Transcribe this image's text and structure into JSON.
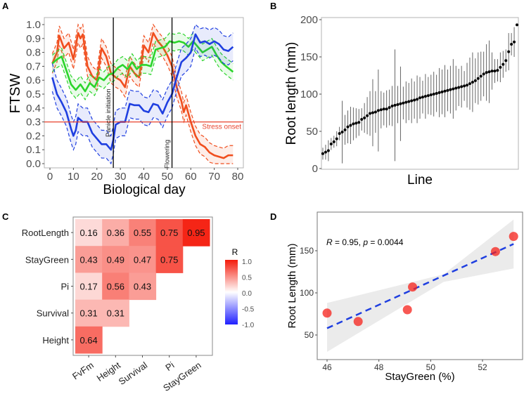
{
  "chart_data": [
    {
      "panel": "A",
      "type": "line",
      "xlabel": "Biological day",
      "ylabel": "FTSW",
      "xlim": [
        0,
        80
      ],
      "ylim": [
        0,
        1
      ],
      "xticks": [
        0,
        10,
        20,
        30,
        40,
        50,
        60,
        70,
        80
      ],
      "yticks": [
        "0.0",
        "0.1",
        "0.2",
        "0.3",
        "0.4",
        "0.5",
        "0.6",
        "0.7",
        "0.8",
        "0.9",
        "1.0"
      ],
      "grid": false,
      "series": [
        {
          "color": "#F04E1E",
          "band_halfwidth": 0.07,
          "x": [
            1,
            3,
            4,
            6,
            8,
            10,
            12,
            13,
            14,
            16,
            18,
            20,
            22,
            24,
            26,
            28,
            30,
            32,
            34,
            36,
            38,
            40,
            42,
            44,
            46,
            48,
            50,
            52,
            54,
            56,
            57,
            58,
            60,
            62,
            64,
            66,
            68,
            70,
            72,
            74,
            76,
            78
          ],
          "y": [
            0.72,
            0.8,
            0.92,
            0.83,
            0.87,
            0.75,
            0.94,
            0.9,
            0.93,
            0.7,
            0.63,
            0.6,
            0.83,
            0.77,
            0.65,
            0.62,
            0.6,
            0.55,
            0.7,
            0.65,
            0.62,
            0.85,
            0.8,
            0.94,
            0.88,
            0.84,
            0.78,
            0.7,
            0.55,
            0.45,
            0.37,
            0.42,
            0.3,
            0.2,
            0.14,
            0.12,
            0.08,
            0.06,
            0.05,
            0.04,
            0.06,
            0.06
          ]
        },
        {
          "color": "#2BD42B",
          "band_halfwidth": 0.06,
          "x": [
            1,
            3,
            5,
            7,
            9,
            11,
            13,
            15,
            17,
            19,
            21,
            23,
            25,
            27,
            29,
            31,
            33,
            35,
            37,
            39,
            41,
            43,
            45,
            47,
            49,
            51,
            53,
            55,
            57,
            59,
            61,
            63,
            65,
            67,
            69,
            71,
            73,
            75,
            78
          ],
          "y": [
            0.72,
            0.75,
            0.77,
            0.67,
            0.57,
            0.53,
            0.57,
            0.52,
            0.58,
            0.55,
            0.62,
            0.6,
            0.64,
            0.65,
            0.69,
            0.71,
            0.68,
            0.73,
            0.68,
            0.71,
            0.71,
            0.7,
            0.82,
            0.83,
            0.84,
            0.88,
            0.87,
            0.88,
            0.87,
            0.84,
            0.88,
            0.84,
            0.8,
            0.82,
            0.84,
            0.78,
            0.73,
            0.7,
            0.66
          ]
        },
        {
          "color": "#1F3FE0",
          "band_halfwidth": 0.1,
          "x": [
            1,
            3,
            5,
            7,
            9,
            10,
            11,
            12,
            14,
            16,
            18,
            20,
            22,
            24,
            26,
            27,
            28,
            30,
            32,
            34,
            36,
            38,
            40,
            42,
            44,
            46,
            48,
            50,
            52,
            54,
            56,
            58,
            60,
            62,
            64,
            66,
            68,
            70,
            72,
            74,
            76,
            78
          ],
          "y": [
            0.62,
            0.5,
            0.44,
            0.37,
            0.25,
            0.2,
            0.24,
            0.33,
            0.3,
            0.3,
            0.22,
            0.18,
            0.14,
            0.14,
            0.1,
            0.17,
            0.28,
            0.3,
            0.3,
            0.43,
            0.42,
            0.42,
            0.38,
            0.37,
            0.43,
            0.42,
            0.36,
            0.44,
            0.5,
            0.62,
            0.73,
            0.76,
            0.8,
            0.93,
            0.87,
            0.88,
            0.86,
            0.88,
            0.86,
            0.82,
            0.81,
            0.84
          ]
        }
      ],
      "hline": {
        "y": 0.3,
        "label": "Stress onset",
        "color": "#E8432E"
      },
      "vlines": [
        {
          "x": 27,
          "label": "Panicle initiation"
        },
        {
          "x": 52,
          "label": "Flowering"
        }
      ]
    },
    {
      "panel": "B",
      "type": "scatter",
      "xlabel": "Line",
      "ylabel": "Root length (mm)",
      "ylim": [
        0,
        200
      ],
      "yticks": [
        0,
        50,
        100,
        150,
        200
      ],
      "grid": false,
      "values": [
        20,
        22,
        24,
        33,
        36,
        40,
        47,
        49,
        52,
        56,
        58,
        60,
        61,
        62,
        66,
        68,
        71,
        74,
        75,
        76,
        78,
        79,
        80,
        80,
        82,
        84,
        85,
        86,
        87,
        88,
        89,
        90,
        91,
        92,
        93,
        95,
        96,
        97,
        98,
        99,
        100,
        101,
        102,
        103,
        104,
        105,
        106,
        107,
        108,
        109,
        110,
        111,
        112,
        114,
        116,
        118,
        121,
        124,
        127,
        129,
        130,
        131,
        131,
        132,
        136,
        140,
        145,
        157,
        167,
        170,
        193
      ],
      "errors": [
        8,
        10,
        14,
        8,
        8,
        10,
        9,
        42,
        20,
        22,
        25,
        22,
        20,
        18,
        15,
        20,
        25,
        30,
        45,
        28,
        55,
        25,
        22,
        25,
        24,
        27,
        75,
        25,
        50,
        22,
        28,
        25,
        30,
        25,
        32,
        28,
        22,
        30,
        25,
        27,
        30,
        25,
        33,
        30,
        35,
        28,
        32,
        40,
        30,
        25,
        28,
        20,
        30,
        35,
        40,
        30,
        35,
        33,
        30,
        38,
        42,
        25,
        16,
        15,
        20,
        18,
        15,
        25,
        15,
        20,
        0
      ]
    },
    {
      "panel": "C",
      "type": "heatmap",
      "rows": [
        "RootLength",
        "StayGreen",
        "Pi",
        "Survival",
        "Height"
      ],
      "cols": [
        "FvFm",
        "Height",
        "Survival",
        "Pi",
        "StayGreen"
      ],
      "values": [
        [
          0.16,
          0.36,
          0.55,
          0.75,
          0.95
        ],
        [
          0.43,
          0.49,
          0.47,
          0.75,
          null
        ],
        [
          0.17,
          0.56,
          0.43,
          null,
          null
        ],
        [
          0.31,
          0.31,
          null,
          null,
          null
        ],
        [
          0.64,
          null,
          null,
          null,
          null
        ]
      ],
      "legend": {
        "title": "R",
        "ticks": [
          "1.0",
          "0.5",
          "0.0",
          "-0.5",
          "-1.0"
        ],
        "range": [
          -1,
          1
        ],
        "low": "#2020FF",
        "mid": "#FFFFFF",
        "high": "#F41A0A"
      }
    },
    {
      "panel": "D",
      "type": "scatter",
      "xlabel": "StayGreen (%)",
      "ylabel": "Root Length (mm)",
      "xlim": [
        45.8,
        53.4
      ],
      "ylim": [
        20,
        195
      ],
      "xticks": [
        46,
        48,
        50,
        52
      ],
      "yticks": [
        50,
        100,
        150
      ],
      "grid": false,
      "points": [
        [
          46.0,
          76
        ],
        [
          47.2,
          66
        ],
        [
          49.1,
          80
        ],
        [
          49.3,
          107
        ],
        [
          52.5,
          149
        ],
        [
          53.2,
          167
        ]
      ],
      "fit": {
        "x": [
          46.0,
          53.2
        ],
        "y": [
          58,
          158
        ],
        "ci_low": [
          30,
          129
        ],
        "ci_high": [
          88,
          187
        ],
        "color": "#1F3FE0"
      },
      "annotation": {
        "r_label": "R",
        "r_text": " = 0.95, ",
        "p_label": "p",
        "p_text": " = 0.0044"
      }
    }
  ],
  "panel_labels": [
    "A",
    "B",
    "C",
    "D"
  ]
}
